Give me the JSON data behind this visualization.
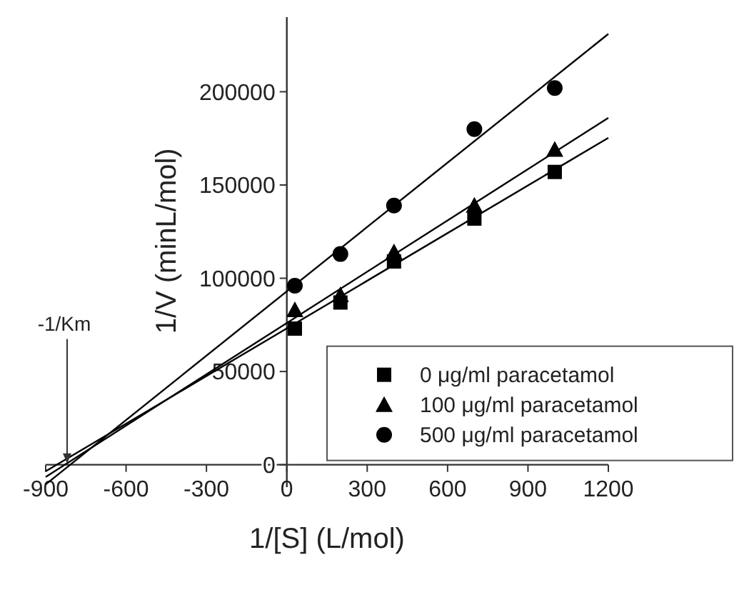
{
  "chart_data": {
    "type": "scatter",
    "xlabel": "1/[S] (L/mol)",
    "ylabel": "1/V (minL/mol)",
    "xlim": [
      -900,
      1200
    ],
    "ylim": [
      -12000,
      240000
    ],
    "xticks": [
      -900,
      -600,
      -300,
      0,
      300,
      600,
      900,
      1200
    ],
    "yticks": [
      0,
      50000,
      100000,
      150000,
      200000
    ],
    "legend": "bottom right",
    "grid": false,
    "annotations": [
      {
        "text": "-1/Km",
        "x": -820,
        "y": 0
      }
    ],
    "series": [
      {
        "name": "0 μg/ml paracetamol",
        "color": "#000000",
        "marker": "square",
        "x": [
          30,
          200,
          400,
          700,
          1000
        ],
        "values": [
          73000,
          87000,
          109000,
          132000,
          157000
        ]
      },
      {
        "name": "100 μg/ml paracetamol",
        "color": "#000000",
        "marker": "triangle",
        "x": [
          30,
          200,
          400,
          700,
          1000
        ],
        "values": [
          83000,
          91000,
          114000,
          139000,
          169000
        ]
      },
      {
        "name": "500 μg/ml paracetamol",
        "color": "#000000",
        "marker": "circle",
        "x": [
          30,
          200,
          400,
          700,
          1000
        ],
        "values": [
          96000,
          113000,
          139000,
          180000,
          202000
        ]
      },
      {
        "type": "line",
        "color": "#000000",
        "x": [
          -900,
          1200
        ],
        "values": [
          -3500,
          175300
        ]
      },
      {
        "type": "line",
        "color": "#000000",
        "x": [
          -900,
          1200
        ],
        "values": [
          -6500,
          186000
        ]
      },
      {
        "type": "line",
        "color": "#000000",
        "x": [
          -900,
          1200
        ],
        "values": [
          -10500,
          231000
        ]
      }
    ]
  }
}
